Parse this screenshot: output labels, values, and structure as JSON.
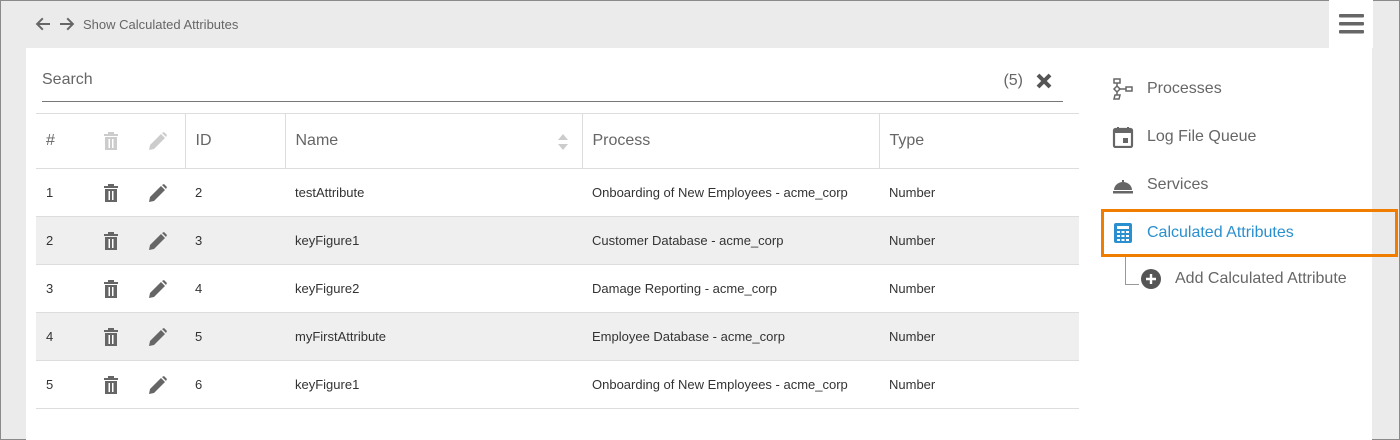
{
  "header": {
    "title": "Show Calculated Attributes",
    "back_icon": "arrow-left-icon",
    "forward_icon": "arrow-right-icon",
    "menu_icon": "hamburger-icon"
  },
  "search": {
    "placeholder": "Search",
    "value": "",
    "count": "(5)"
  },
  "table": {
    "columns": [
      "#",
      "",
      "",
      "ID",
      "Name",
      "Process",
      "Type"
    ],
    "rows": [
      {
        "num": "1",
        "id": "2",
        "name": "testAttribute",
        "process": "Onboarding of New Employees - acme_corp",
        "type": "Number"
      },
      {
        "num": "2",
        "id": "3",
        "name": "keyFigure1",
        "process": "Customer Database - acme_corp",
        "type": "Number"
      },
      {
        "num": "3",
        "id": "4",
        "name": "keyFigure2",
        "process": "Damage Reporting - acme_corp",
        "type": "Number"
      },
      {
        "num": "4",
        "id": "5",
        "name": "myFirstAttribute",
        "process": "Employee Database - acme_corp",
        "type": "Number"
      },
      {
        "num": "5",
        "id": "6",
        "name": "keyFigure1",
        "process": "Onboarding of New Employees - acme_corp",
        "type": "Number"
      }
    ]
  },
  "sidebar": {
    "items": [
      {
        "label": "Processes",
        "icon": "process-diagram-icon"
      },
      {
        "label": "Log File Queue",
        "icon": "calendar-icon"
      },
      {
        "label": "Services",
        "icon": "service-bell-icon"
      },
      {
        "label": "Calculated Attributes",
        "icon": "calculator-icon",
        "active": true
      }
    ],
    "sub_item": {
      "label": "Add Calculated Attribute",
      "icon": "plus-circle-icon"
    }
  },
  "colors": {
    "accent": "#2a8fce",
    "highlight": "#f07d00",
    "icon": "#666666"
  }
}
